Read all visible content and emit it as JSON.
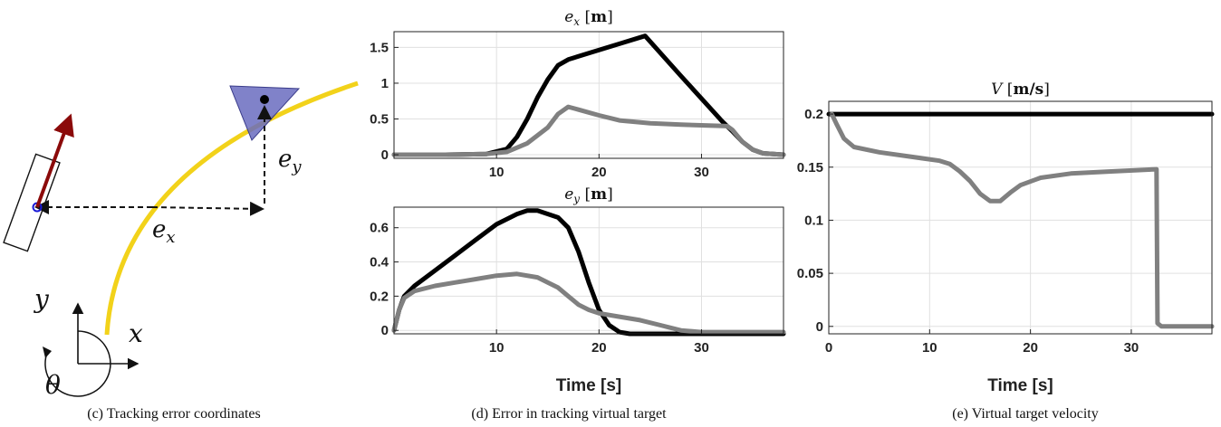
{
  "captions": {
    "c": "(c) Tracking error coordinates",
    "d": "(d) Error in tracking virtual target",
    "e": "(e) Virtual target velocity"
  },
  "diagram": {
    "x_axis": "x",
    "y_axis": "y",
    "theta": "θ",
    "ex_label": "e",
    "ex_sub": "x",
    "ey_label": "e",
    "ey_sub": "y",
    "colors": {
      "path": "#f2d21a",
      "vehicle_arrow": "#8b0a0a",
      "target": "#6a6cbf",
      "vehicle_dot": "#1a1ad6"
    }
  },
  "chart_data": [
    {
      "type": "line",
      "title_var": "e",
      "title_sub": "x",
      "title_unit": "m",
      "xlabel": "",
      "xlim": [
        0,
        38
      ],
      "ylim": [
        -0.05,
        1.72
      ],
      "xticks": [
        "10",
        "20",
        "30"
      ],
      "yticks": [
        "0",
        "0.5",
        "1",
        "1.5"
      ],
      "grid": true,
      "series": [
        {
          "color": "#000000",
          "x": [
            0,
            5,
            9,
            11,
            12,
            13,
            14,
            15,
            16,
            17,
            19,
            22,
            24.5,
            28,
            32,
            33,
            34,
            35,
            36,
            38
          ],
          "y": [
            0,
            0,
            0.01,
            0.08,
            0.25,
            0.5,
            0.8,
            1.05,
            1.25,
            1.33,
            1.42,
            1.55,
            1.66,
            1.1,
            0.47,
            0.33,
            0.18,
            0.07,
            0.02,
            0
          ]
        },
        {
          "color": "#808080",
          "x": [
            0,
            5,
            9,
            11,
            13,
            15,
            16,
            17,
            18,
            20,
            22,
            25,
            28,
            32.5,
            33,
            34,
            35,
            36,
            38
          ],
          "y": [
            0,
            0,
            0.01,
            0.04,
            0.16,
            0.38,
            0.57,
            0.67,
            0.63,
            0.55,
            0.48,
            0.44,
            0.42,
            0.4,
            0.35,
            0.18,
            0.07,
            0.02,
            0
          ]
        }
      ]
    },
    {
      "type": "line",
      "title_var": "e",
      "title_sub": "y",
      "title_unit": "m",
      "xlabel": "Time [s]",
      "xlim": [
        0,
        38
      ],
      "ylim": [
        -0.02,
        0.72
      ],
      "xticks": [
        "10",
        "20",
        "30"
      ],
      "yticks": [
        "0",
        "0.2",
        "0.4",
        "0.6"
      ],
      "grid": true,
      "series": [
        {
          "color": "#000000",
          "x": [
            0,
            0.5,
            1,
            2,
            4,
            6,
            8,
            10,
            12,
            13,
            14,
            16,
            17,
            18,
            19,
            20,
            21,
            22,
            23,
            25,
            30,
            38
          ],
          "y": [
            0,
            0.12,
            0.2,
            0.26,
            0.35,
            0.44,
            0.53,
            0.62,
            0.68,
            0.7,
            0.7,
            0.66,
            0.6,
            0.46,
            0.28,
            0.12,
            0.03,
            -0.01,
            -0.02,
            -0.02,
            -0.02,
            -0.02
          ]
        },
        {
          "color": "#808080",
          "x": [
            0,
            0.5,
            1,
            2,
            4,
            6,
            8,
            10,
            12,
            14,
            15,
            16,
            17,
            18,
            19,
            20,
            22,
            24,
            26,
            28,
            30,
            38
          ],
          "y": [
            0,
            0.12,
            0.19,
            0.23,
            0.26,
            0.28,
            0.3,
            0.32,
            0.33,
            0.31,
            0.28,
            0.25,
            0.2,
            0.15,
            0.12,
            0.1,
            0.08,
            0.06,
            0.03,
            0,
            -0.01,
            -0.01
          ]
        }
      ]
    },
    {
      "type": "line",
      "title_var": "V",
      "title_sub": "",
      "title_unit": "m/s",
      "xlabel": "Time [s]",
      "xlim": [
        0,
        38
      ],
      "ylim": [
        -0.007,
        0.212
      ],
      "xticks": [
        "0",
        "10",
        "20",
        "30"
      ],
      "yticks": [
        "0",
        "0.05",
        "0.1",
        "0.15",
        "0.2"
      ],
      "grid": true,
      "series": [
        {
          "color": "#000000",
          "x": [
            0,
            38
          ],
          "y": [
            0.2,
            0.2
          ]
        },
        {
          "color": "#808080",
          "x": [
            0.3,
            0.8,
            1.5,
            2.5,
            5,
            8,
            11,
            12,
            13,
            14,
            15,
            16,
            17,
            18,
            19,
            21,
            24,
            28,
            32.5,
            32.6,
            33,
            38
          ],
          "y": [
            0.2,
            0.19,
            0.177,
            0.169,
            0.164,
            0.16,
            0.156,
            0.153,
            0.146,
            0.137,
            0.125,
            0.118,
            0.118,
            0.126,
            0.133,
            0.14,
            0.144,
            0.146,
            0.148,
            0.003,
            0,
            0
          ]
        }
      ]
    }
  ]
}
